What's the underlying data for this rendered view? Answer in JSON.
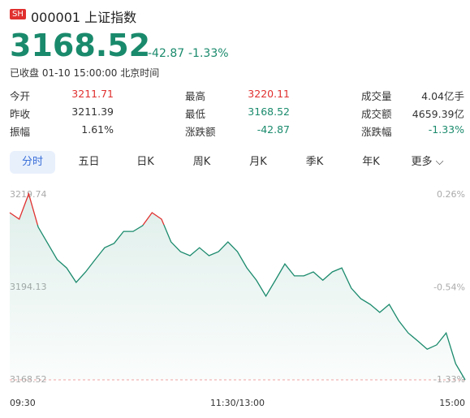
{
  "header": {
    "badge": "SH",
    "name": "000001 上证指数",
    "price": "3168.52",
    "change": "-42.87",
    "change_pct": "-1.33%",
    "status": "已收盘 01-10 15:00:00 北京时间"
  },
  "stats": [
    [
      "今开",
      "3211.71",
      "最高",
      "3220.11",
      "成交量",
      "4.04亿手"
    ],
    [
      "昨收",
      "3211.39",
      "最低",
      "3168.52",
      "成交额",
      "4659.39亿"
    ],
    [
      "振幅",
      "1.61%",
      "涨跌额",
      "-42.87",
      "涨跌幅",
      "-1.33%"
    ]
  ],
  "tabs": [
    "分时",
    "五日",
    "日K",
    "周K",
    "月K",
    "季K",
    "年K",
    "更多"
  ],
  "chart_data": {
    "type": "line",
    "baseline": 3211.39,
    "up_color": "#e0302f",
    "down_color": "#1a8a6c",
    "x": [
      0,
      5,
      10,
      15,
      20,
      25,
      30,
      35,
      40,
      45,
      50,
      55,
      60,
      65,
      70,
      75,
      80,
      85,
      90,
      95,
      100,
      105,
      110,
      115,
      120,
      125,
      130,
      135,
      140,
      145,
      150,
      155,
      160,
      165,
      170,
      175,
      180,
      185,
      190,
      195,
      200,
      205,
      210,
      215,
      220,
      225,
      230,
      235,
      240
    ],
    "values": [
      3214.8,
      3213.0,
      3220.0,
      3210.8,
      3206.3,
      3201.8,
      3199.5,
      3195.5,
      3198.4,
      3201.8,
      3205.1,
      3206.3,
      3209.6,
      3209.6,
      3211.2,
      3214.8,
      3213.0,
      3206.7,
      3204.0,
      3202.9,
      3205.1,
      3202.9,
      3204.0,
      3206.7,
      3204.0,
      3199.5,
      3196.1,
      3191.7,
      3196.1,
      3200.6,
      3197.3,
      3197.3,
      3198.4,
      3196.1,
      3198.4,
      3199.5,
      3193.9,
      3191.0,
      3189.4,
      3187.2,
      3189.4,
      3184.9,
      3181.5,
      3179.3,
      3177.0,
      3178.2,
      3181.5,
      3173.0,
      3168.52
    ],
    "xlim": [
      0,
      240
    ],
    "xticks": [
      {
        "value": 0,
        "label": "09:30"
      },
      {
        "value": 120,
        "label": "11:30/13:00"
      },
      {
        "value": 240,
        "label": "15:00"
      }
    ],
    "ylim": [
      3168.52,
      3219.74
    ],
    "yticks": [
      3168.52,
      3194.13,
      3219.74
    ],
    "y2lim": [
      -1.33,
      0.26
    ],
    "y2ticks": [
      {
        "value": -1.33,
        "label": "-1.33%"
      },
      {
        "value": -0.54,
        "label": "-0.54%"
      },
      {
        "value": 0.26,
        "label": "0.26%"
      }
    ]
  }
}
